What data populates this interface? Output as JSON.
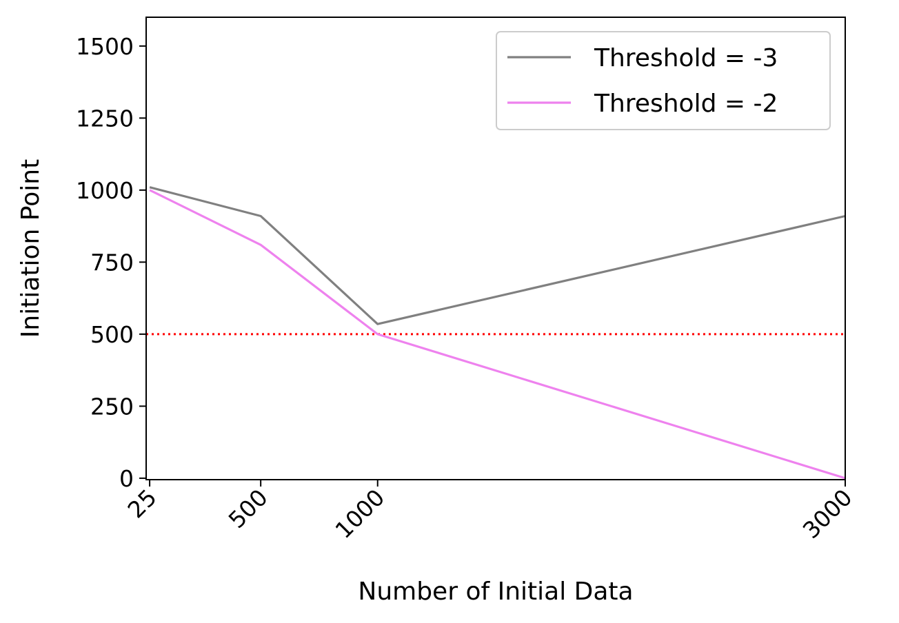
{
  "chart_data": {
    "type": "line",
    "title": "",
    "xlabel": "Number of Initial Data",
    "ylabel": "Initiation Point",
    "x": [
      25,
      500,
      1000,
      3000
    ],
    "x_tick_labels": [
      "25",
      "500",
      "1000",
      "3000"
    ],
    "y_ticks": [
      0,
      250,
      500,
      750,
      1000,
      1250,
      1500
    ],
    "y_tick_labels": [
      "0",
      "250",
      "500",
      "750",
      "1000",
      "1250",
      "1500"
    ],
    "xlim": [
      10,
      3000
    ],
    "ylim": [
      -5,
      1600
    ],
    "x_scale": "linear",
    "grid": false,
    "legend_position": "upper right",
    "series": [
      {
        "name": "Threshold = -3",
        "color": "#808080",
        "values": [
          1010,
          910,
          535,
          910
        ]
      },
      {
        "name": "Threshold = -2",
        "color": "#ee82ee",
        "values": [
          1000,
          810,
          500,
          0
        ]
      }
    ],
    "reference_lines": [
      {
        "orientation": "horizontal",
        "y": 500,
        "color": "#ff0000",
        "style": "dotted"
      }
    ]
  }
}
